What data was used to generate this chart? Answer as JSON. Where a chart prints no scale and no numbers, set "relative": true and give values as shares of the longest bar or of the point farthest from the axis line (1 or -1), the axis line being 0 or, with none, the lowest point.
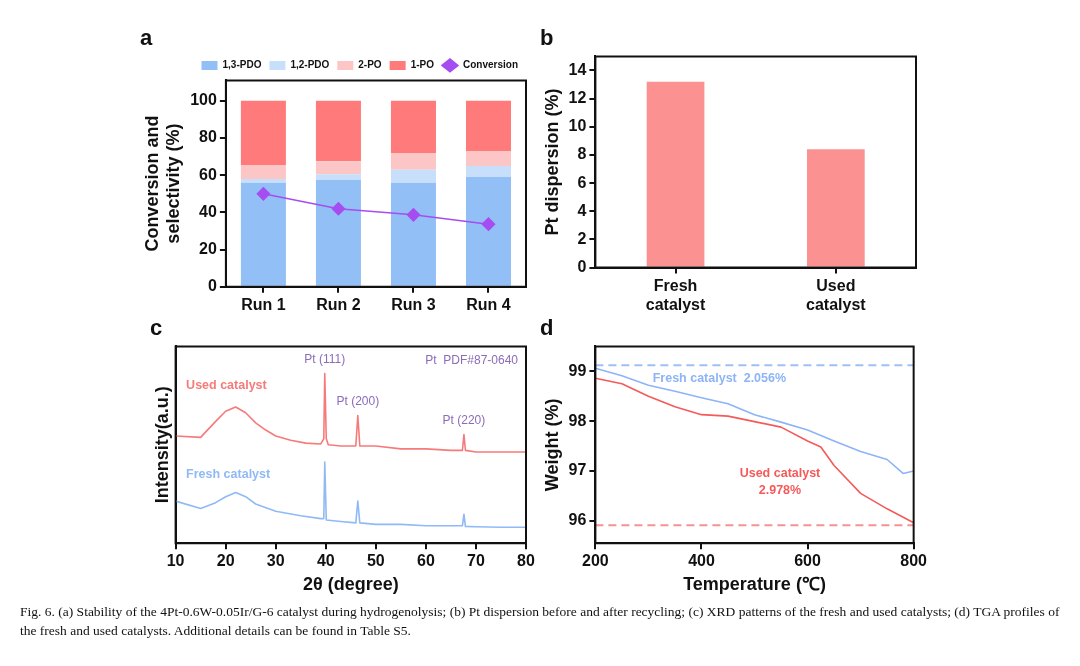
{
  "chart_data": [
    {
      "type": "bar",
      "title": "a",
      "ylabel": "Conversion and selectivity (%)",
      "categories": [
        "Run 1",
        "Run 2",
        "Run 3",
        "Run 4"
      ],
      "stacked": true,
      "ylim": [
        0,
        111
      ],
      "yticks": [
        0,
        20,
        40,
        60,
        80,
        100
      ],
      "legend": "top",
      "marker": "diamond",
      "series": [
        {
          "name": "1,3-PDO",
          "color": "#93bff7",
          "values": [
            56,
            57.5,
            56,
            59
          ]
        },
        {
          "name": "1,2-PDO",
          "color": "#c8dffc",
          "values": [
            2,
            3,
            7,
            6
          ]
        },
        {
          "name": "2-PO",
          "color": "#fdc6c6",
          "values": [
            7.5,
            7,
            9,
            8
          ]
        },
        {
          "name": "1-PO",
          "color": "#ff7b7b",
          "values": [
            34.5,
            32.5,
            28,
            27
          ]
        },
        {
          "name": "Conversion",
          "type": "line",
          "color": "#a64df2",
          "values": [
            50,
            42,
            38.7,
            33.7
          ]
        }
      ]
    },
    {
      "type": "bar",
      "title": "b",
      "ylabel": "Pt dispersion (%)",
      "categories": [
        "Fresh catalyst",
        "Used catalyst"
      ],
      "values": [
        13.2,
        8.4
      ],
      "color": "#fc9191",
      "ylim": [
        0,
        15
      ],
      "yticks": [
        0,
        2,
        4,
        6,
        8,
        10,
        12,
        14
      ]
    },
    {
      "type": "line",
      "title": "c",
      "xlabel": "2θ (degree)",
      "ylabel": "Intensity(a.u.)",
      "relative": true,
      "tick_labels": "x",
      "xlim": [
        10,
        80
      ],
      "xticks": [
        10,
        20,
        30,
        40,
        50,
        60,
        70,
        80
      ],
      "annotations": [
        {
          "text": "Pt (111)",
          "x": 39.8,
          "y": 1.0
        },
        {
          "text": "Pt (200)",
          "x": 46.4,
          "y": 0.752
        },
        {
          "text": "Pt (220)",
          "x": 67.6,
          "y": 0.641
        },
        "Pt  PDF#87-0640"
      ],
      "series": [
        {
          "name": "Used catalyst",
          "color": "#f77a7a",
          "x": [
            10,
            15,
            18,
            20,
            22,
            24,
            26,
            28,
            30,
            33,
            36,
            39,
            39.6,
            39.8,
            40.1,
            40.5,
            43,
            46,
            46.4,
            46.8,
            50,
            55,
            60,
            65,
            67.3,
            67.6,
            67.9,
            70,
            75,
            80
          ],
          "values": [
            0.632,
            0.624,
            0.718,
            0.778,
            0.803,
            0.769,
            0.709,
            0.667,
            0.632,
            0.607,
            0.59,
            0.585,
            0.615,
            1.0,
            0.615,
            0.58,
            0.573,
            0.573,
            0.752,
            0.573,
            0.573,
            0.556,
            0.556,
            0.547,
            0.547,
            0.641,
            0.547,
            0.538,
            0.538,
            0.538
          ]
        },
        {
          "name": "Fresh catalyst",
          "color": "#8fbaf5",
          "x": [
            10,
            15,
            18,
            20,
            22,
            24,
            26,
            30,
            35,
            39,
            39.6,
            39.8,
            40.1,
            43,
            46,
            46.4,
            46.8,
            50,
            55,
            60,
            65,
            67.3,
            67.6,
            67.9,
            70,
            75,
            80
          ],
          "values": [
            0.248,
            0.205,
            0.239,
            0.274,
            0.299,
            0.274,
            0.231,
            0.188,
            0.162,
            0.145,
            0.145,
            0.479,
            0.137,
            0.128,
            0.12,
            0.248,
            0.12,
            0.111,
            0.111,
            0.103,
            0.103,
            0.103,
            0.171,
            0.099,
            0.097,
            0.094,
            0.094
          ]
        }
      ]
    },
    {
      "type": "line",
      "title": "d",
      "xlabel": "Temperature (℃)",
      "ylabel": "Weight (%)",
      "xlim": [
        200,
        800
      ],
      "xticks": [
        200,
        400,
        600,
        800
      ],
      "ylim": [
        95.55,
        99.5
      ],
      "yticks": [
        96,
        97,
        98,
        99
      ],
      "ref_lines": [
        {
          "axis": "y",
          "value": 99.12,
          "color": "#9fc0f5",
          "line_style": "dashed"
        },
        {
          "axis": "y",
          "value": 95.91,
          "color": "#f59393",
          "line_style": "dashed"
        }
      ],
      "annotations": [
        "Fig. 6. (a) Stability of the 4Pt-0.6W-0.05Ir/G-6 catalyst during hydrogenolysis; (b) Pt dispersion before and after recycling; (c) XRD patterns of the fresh and used catalysts; (d) TGA profiles of the fresh and used catalysts. Additional details can be found in Table S5."
      ],
      "series": [
        {
          "name": "Fresh catalyst  2.056%",
          "color": "#8db4f7",
          "x": [
            200,
            250,
            300,
            350,
            400,
            450,
            500,
            550,
            600,
            650,
            700,
            750,
            780,
            800
          ],
          "values": [
            99.06,
            98.91,
            98.72,
            98.6,
            98.47,
            98.35,
            98.13,
            97.98,
            97.82,
            97.6,
            97.39,
            97.23,
            96.95,
            97.0
          ]
        },
        {
          "name": "Used catalyst 2.978%",
          "color": "#f55a5a",
          "x": [
            200,
            250,
            300,
            350,
            400,
            450,
            500,
            550,
            600,
            625,
            650,
            700,
            750,
            800
          ],
          "values": [
            98.86,
            98.75,
            98.5,
            98.29,
            98.13,
            98.1,
            97.99,
            97.88,
            97.6,
            97.48,
            97.11,
            96.55,
            96.24,
            95.96
          ]
        }
      ]
    }
  ]
}
